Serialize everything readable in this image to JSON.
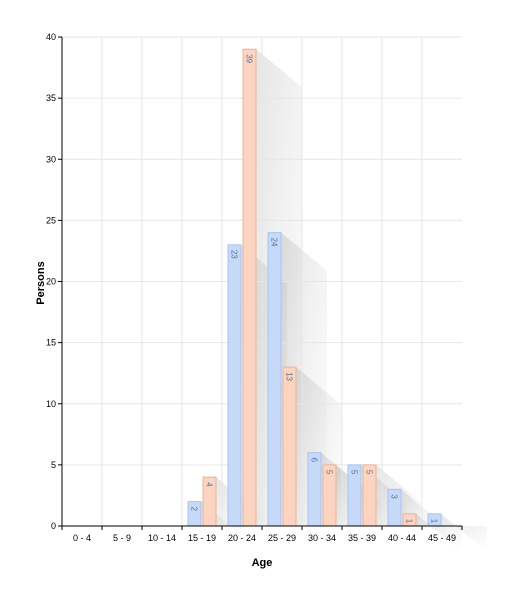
{
  "chart_data": {
    "type": "bar",
    "title": "",
    "xlabel": "Age",
    "ylabel": "Persons",
    "categories": [
      "0 - 4",
      "5 - 9",
      "10 - 14",
      "15 - 19",
      "20 - 24",
      "25 - 29",
      "30 - 34",
      "35 - 39",
      "40 - 44",
      "45 - 49"
    ],
    "series": [
      {
        "values": [
          0,
          0,
          0,
          2,
          23,
          24,
          6,
          5,
          3,
          1
        ],
        "color": "#c6d9f8",
        "stroke": "#a9c3ef"
      },
      {
        "values": [
          0,
          0,
          0,
          4,
          39,
          13,
          5,
          5,
          1,
          0
        ],
        "color": "#fbd5c2",
        "stroke": "#e9b49a"
      }
    ],
    "ylim": [
      0,
      40
    ],
    "yticks": [
      0,
      5,
      10,
      15,
      20,
      25,
      30,
      35,
      40
    ],
    "grid": true,
    "legend": "none",
    "data_labels": true
  }
}
